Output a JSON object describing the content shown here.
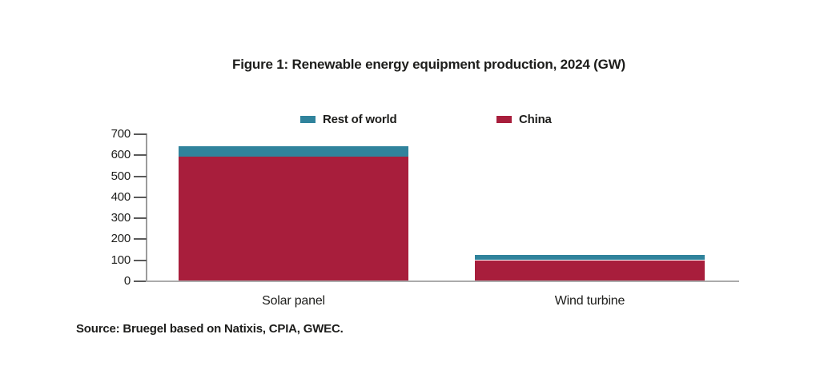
{
  "figure": {
    "title": "Figure 1: Renewable energy equipment production, 2024 (GW)",
    "source": "Source: Bruegel based on Natixis, CPIA, GWEC."
  },
  "colors": {
    "china": "#a81e3c",
    "rest_of_world": "#30839c"
  },
  "chart_data": {
    "type": "bar",
    "stacked": true,
    "title": "Figure 1: Renewable energy equipment production, 2024 (GW)",
    "categories": [
      "Solar panel",
      "Wind turbine"
    ],
    "series": [
      {
        "name": "China",
        "color_key": "china",
        "values": [
          588,
          97
        ]
      },
      {
        "name": "Rest of world",
        "color_key": "rest_of_world",
        "values": [
          52,
          23
        ]
      }
    ],
    "totals": [
      640,
      120
    ],
    "legend": [
      {
        "label": "Rest of world",
        "color_key": "rest_of_world"
      },
      {
        "label": "China",
        "color_key": "china"
      }
    ],
    "legend_position": "top",
    "xlabel": "",
    "ylabel": "",
    "ylim": [
      0,
      700
    ],
    "yticks": [
      0,
      100,
      200,
      300,
      400,
      500,
      600,
      700
    ],
    "grid": false
  }
}
